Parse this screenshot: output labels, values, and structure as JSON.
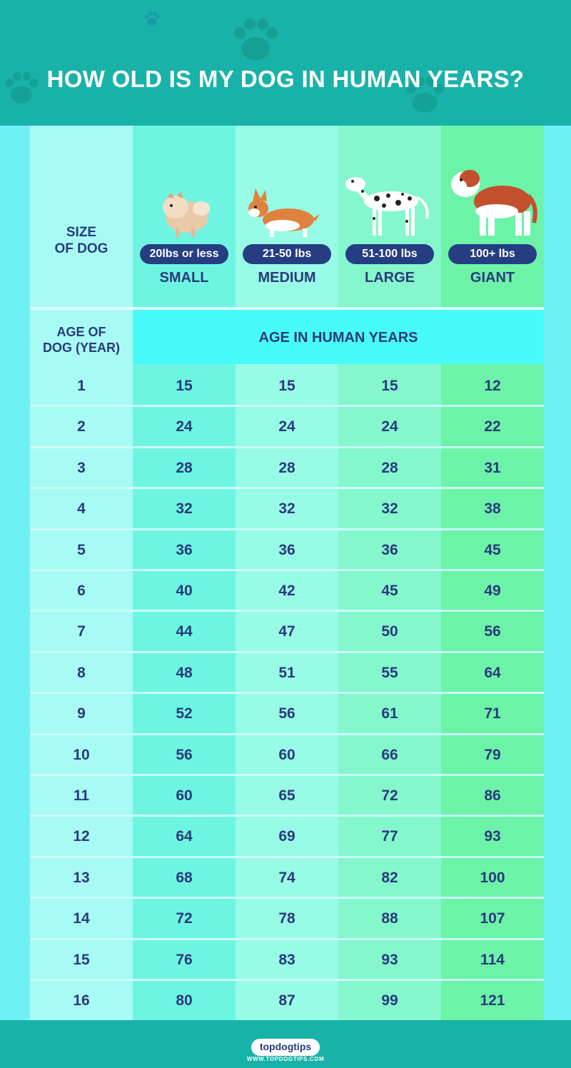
{
  "header": {
    "title": "HOW OLD IS MY DOG IN HUMAN YEARS?"
  },
  "size_label": "SIZE\nOF DOG",
  "sizes": [
    {
      "weight": "20lbs or less",
      "name": "SMALL",
      "icon": "pomeranian-icon"
    },
    {
      "weight": "21-50 lbs",
      "name": "MEDIUM",
      "icon": "corgi-icon"
    },
    {
      "weight": "51-100 lbs",
      "name": "LARGE",
      "icon": "dalmatian-icon"
    },
    {
      "weight": "100+ lbs",
      "name": "GIANT",
      "icon": "saint-bernard-icon"
    }
  ],
  "age_label": "AGE OF\nDOG (YEAR)",
  "band_label": "AGE IN HUMAN YEARS",
  "rows": [
    {
      "age": "1",
      "values": [
        "15",
        "15",
        "15",
        "12"
      ]
    },
    {
      "age": "2",
      "values": [
        "24",
        "24",
        "24",
        "22"
      ]
    },
    {
      "age": "3",
      "values": [
        "28",
        "28",
        "28",
        "31"
      ]
    },
    {
      "age": "4",
      "values": [
        "32",
        "32",
        "32",
        "38"
      ]
    },
    {
      "age": "5",
      "values": [
        "36",
        "36",
        "36",
        "45"
      ]
    },
    {
      "age": "6",
      "values": [
        "40",
        "42",
        "45",
        "49"
      ]
    },
    {
      "age": "7",
      "values": [
        "44",
        "47",
        "50",
        "56"
      ]
    },
    {
      "age": "8",
      "values": [
        "48",
        "51",
        "55",
        "64"
      ]
    },
    {
      "age": "9",
      "values": [
        "52",
        "56",
        "61",
        "71"
      ]
    },
    {
      "age": "10",
      "values": [
        "56",
        "60",
        "66",
        "79"
      ]
    },
    {
      "age": "11",
      "values": [
        "60",
        "65",
        "72",
        "86"
      ]
    },
    {
      "age": "12",
      "values": [
        "64",
        "69",
        "77",
        "93"
      ]
    },
    {
      "age": "13",
      "values": [
        "68",
        "74",
        "82",
        "100"
      ]
    },
    {
      "age": "14",
      "values": [
        "72",
        "78",
        "88",
        "107"
      ]
    },
    {
      "age": "15",
      "values": [
        "76",
        "83",
        "93",
        "114"
      ]
    },
    {
      "age": "16",
      "values": [
        "80",
        "87",
        "99",
        "121"
      ]
    }
  ],
  "footer": {
    "logo": "topdogtips",
    "url": "WWW.TOPDOGTIPS.COM"
  },
  "colors": {
    "header": "#18b2a8",
    "text": "#2a3a7c",
    "pill": "#253e82",
    "band": "#48fbfb"
  }
}
